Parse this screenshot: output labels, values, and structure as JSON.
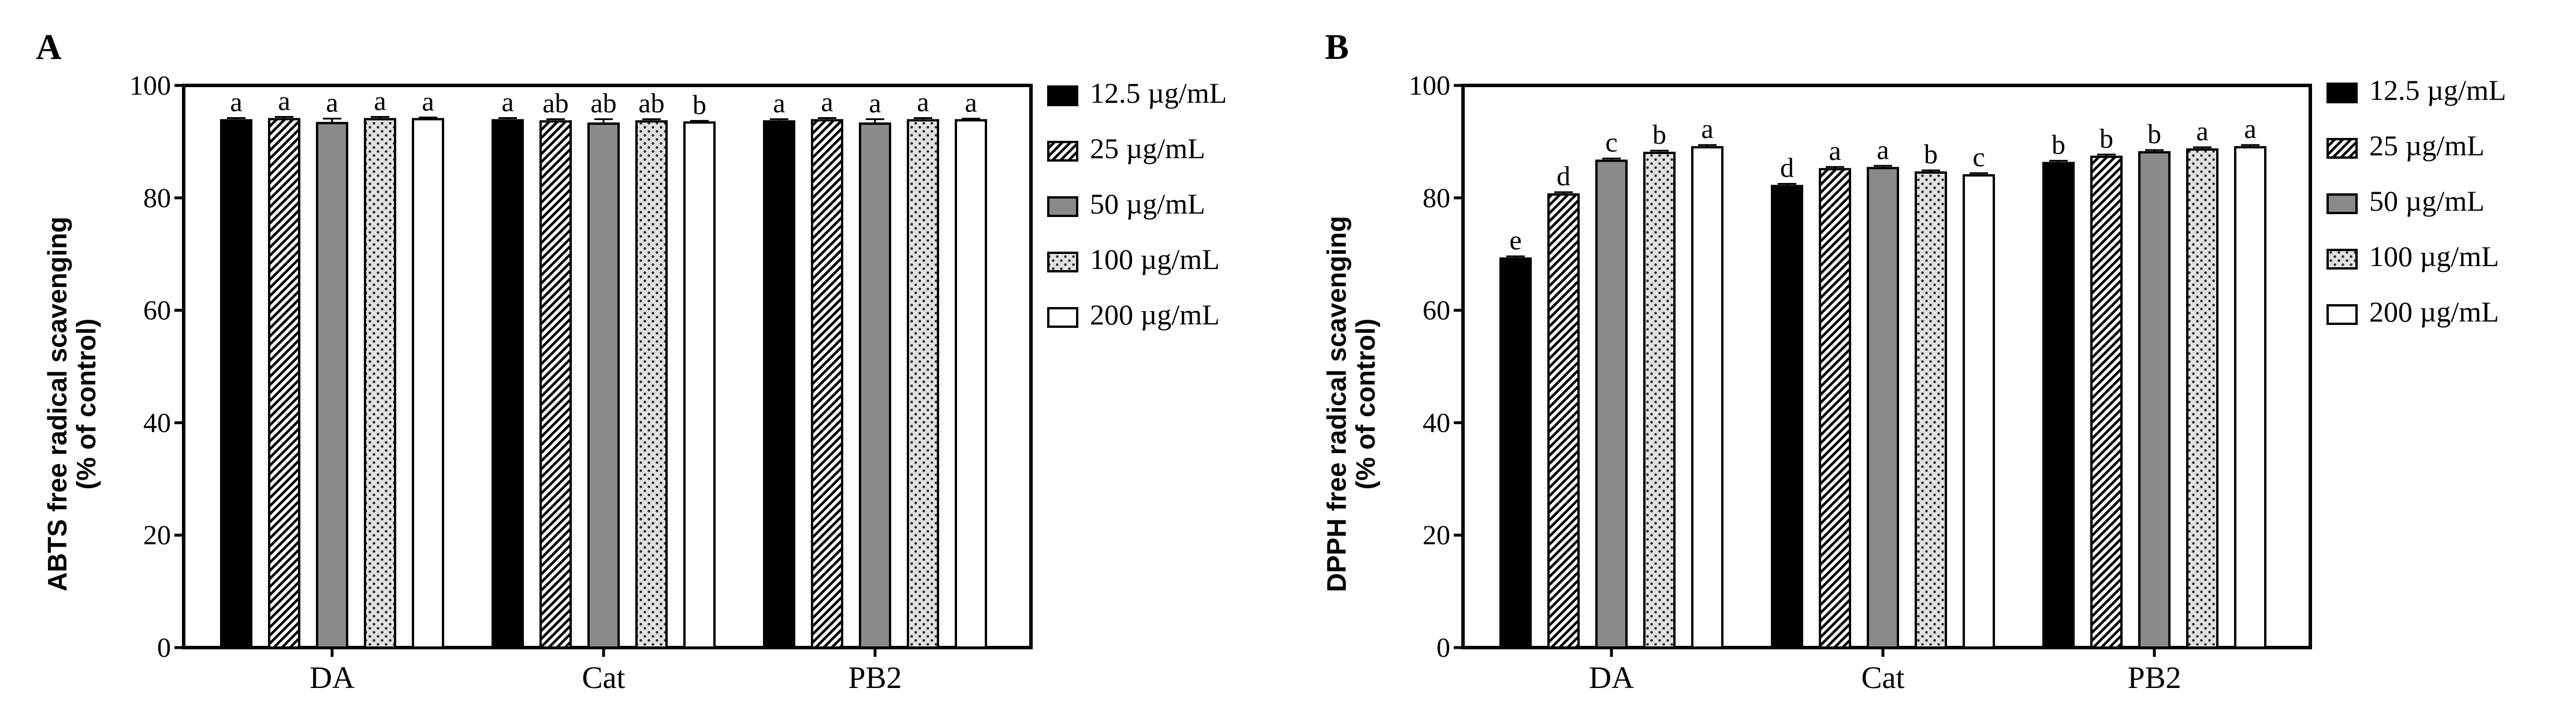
{
  "chart_data": [
    {
      "panel": "A",
      "type": "bar",
      "title": "",
      "xlabel": "",
      "ylabel": "ABTS free radical scavenging",
      "ylabel2": "(% of control)",
      "ylim": [
        0,
        100
      ],
      "yticks": [
        0,
        20,
        40,
        60,
        80,
        100
      ],
      "categories": [
        "DA",
        "Cat",
        "PB2"
      ],
      "legend_position": "right",
      "series": [
        {
          "name": "12.5 µg/mL",
          "pattern": "solid-black",
          "values": [
            93.8,
            93.8,
            93.6
          ],
          "errors": [
            0.4,
            0.4,
            0.4
          ],
          "letters": [
            "a",
            "a",
            "a"
          ]
        },
        {
          "name": "25 µg/mL",
          "pattern": "diagonal",
          "values": [
            94.0,
            93.6,
            93.8
          ],
          "errors": [
            0.4,
            0.4,
            0.4
          ],
          "letters": [
            "a",
            "ab",
            "a"
          ]
        },
        {
          "name": "50 µg/mL",
          "pattern": "gray",
          "values": [
            93.3,
            93.2,
            93.2
          ],
          "errors": [
            0.8,
            0.8,
            0.8
          ],
          "letters": [
            "a",
            "ab",
            "a"
          ]
        },
        {
          "name": "100 µg/mL",
          "pattern": "dotted",
          "values": [
            94.0,
            93.6,
            93.8
          ],
          "errors": [
            0.4,
            0.4,
            0.4
          ],
          "letters": [
            "a",
            "ab",
            "a"
          ]
        },
        {
          "name": "200 µg/mL",
          "pattern": "white",
          "values": [
            94.0,
            93.4,
            93.8
          ],
          "errors": [
            0.3,
            0.3,
            0.3
          ],
          "letters": [
            "a",
            "b",
            "a"
          ]
        }
      ]
    },
    {
      "panel": "B",
      "type": "bar",
      "title": "",
      "xlabel": "",
      "ylabel": "DPPH free radical scavenging",
      "ylabel2": "(% of control)",
      "ylim": [
        0,
        100
      ],
      "yticks": [
        0,
        20,
        40,
        60,
        80,
        100
      ],
      "categories": [
        "DA",
        "Cat",
        "PB2"
      ],
      "legend_position": "right",
      "series": [
        {
          "name": "12.5 µg/mL",
          "pattern": "solid-black",
          "values": [
            69.2,
            82.1,
            86.2
          ],
          "errors": [
            0.4,
            0.4,
            0.4
          ],
          "letters": [
            "e",
            "d",
            "b"
          ]
        },
        {
          "name": "25 µg/mL",
          "pattern": "diagonal",
          "values": [
            80.6,
            85.1,
            87.3
          ],
          "errors": [
            0.4,
            0.4,
            0.4
          ],
          "letters": [
            "d",
            "a",
            "b"
          ]
        },
        {
          "name": "50 µg/mL",
          "pattern": "gray",
          "values": [
            86.6,
            85.3,
            88.1
          ],
          "errors": [
            0.4,
            0.4,
            0.4
          ],
          "letters": [
            "c",
            "a",
            "b"
          ]
        },
        {
          "name": "100 µg/mL",
          "pattern": "dotted",
          "values": [
            88.0,
            84.5,
            88.6
          ],
          "errors": [
            0.4,
            0.4,
            0.4
          ],
          "letters": [
            "b",
            "b",
            "a"
          ]
        },
        {
          "name": "200 µg/mL",
          "pattern": "white",
          "values": [
            89.0,
            84.0,
            89.0
          ],
          "errors": [
            0.4,
            0.4,
            0.4
          ],
          "letters": [
            "a",
            "c",
            "a"
          ]
        }
      ]
    }
  ]
}
